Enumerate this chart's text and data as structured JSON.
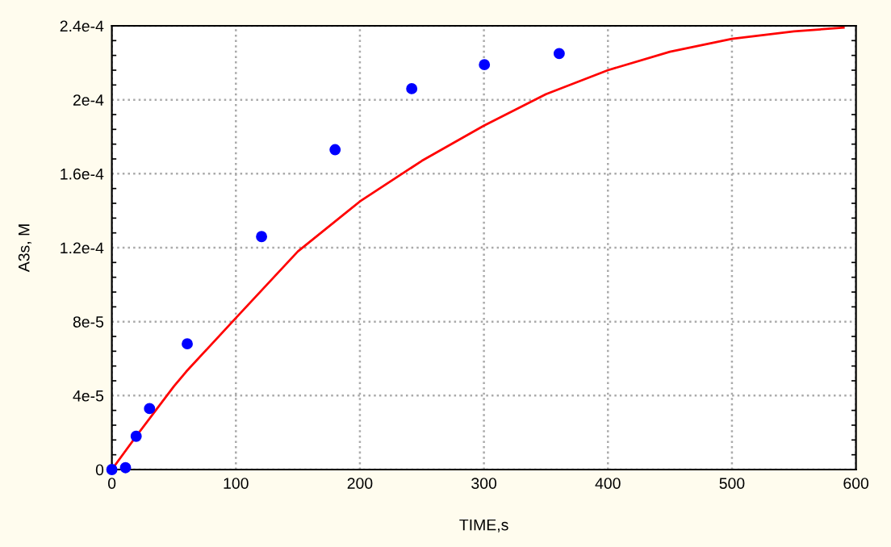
{
  "chart_data": {
    "type": "scatter",
    "xlabel": "TIME,s",
    "ylabel": "A3s, M",
    "series": [
      {
        "color": "#0000ff",
        "marker": "circle",
        "x": [
          0,
          11,
          19.6,
          30.4,
          60.8,
          120.7,
          180,
          241.8,
          300.4,
          360.7
        ],
        "values": [
          0,
          1e-06,
          1.8e-05,
          3.3e-05,
          6.8e-05,
          0.000126,
          0.000173,
          0.000206,
          0.000219,
          0.000225
        ]
      },
      {
        "type": "line",
        "color": "#ff0000",
        "marker": "none",
        "x": [
          0,
          19.6,
          50,
          60,
          100,
          150,
          200,
          250,
          300,
          350,
          400,
          450,
          500,
          550,
          590
        ],
        "values": [
          0,
          1.8e-05,
          4.5e-05,
          5.3e-05,
          8.2e-05,
          0.000118,
          0.000145,
          0.000167,
          0.000186,
          0.000203,
          0.000216,
          0.000226,
          0.000233,
          0.000237,
          0.000239
        ]
      }
    ],
    "xlim": [
      0,
      600
    ],
    "xticks": [
      0,
      100,
      200,
      300,
      400,
      500,
      600
    ],
    "ylim": [
      0,
      0.00024
    ],
    "yticks": [
      {
        "value": 0,
        "label": "0"
      },
      {
        "value": 4e-05,
        "label": "4e-5"
      },
      {
        "value": 8e-05,
        "label": "8e-5"
      },
      {
        "value": 0.00012,
        "label": "1.2e-4"
      },
      {
        "value": 0.00016,
        "label": "1.6e-4"
      },
      {
        "value": 0.0002,
        "label": "2e-4"
      },
      {
        "value": 0.00024,
        "label": "2.4e-4"
      }
    ],
    "grid": true,
    "legend": false
  }
}
